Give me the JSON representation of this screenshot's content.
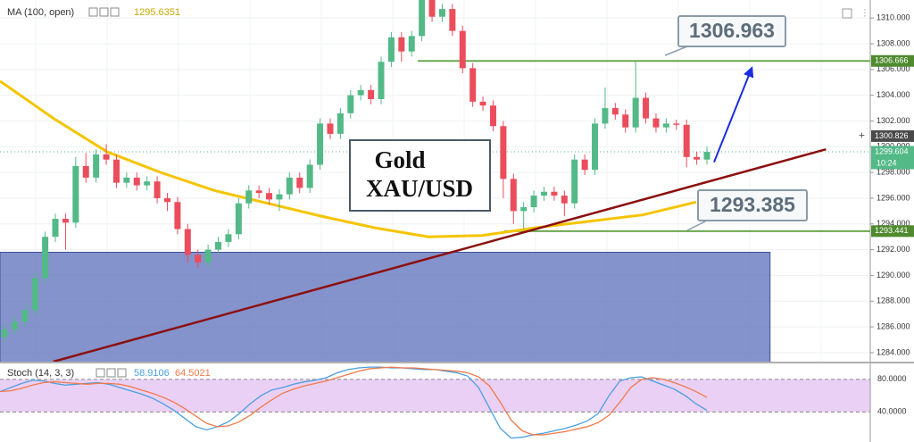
{
  "chart_data": [
    {
      "type": "candlestick",
      "indicator": {
        "name": "MA (100, open)",
        "value_text": "1295.6351",
        "color": "#f5c400",
        "values": [
          1305.1,
          1302.2,
          1299.6,
          1298.0,
          1296.6,
          1295.6,
          1294.6,
          1293.7,
          1293.0,
          1293.1,
          1293.7,
          1294.2,
          1294.7,
          1295.7
        ]
      },
      "up_color": "#53b987",
      "down_color": "#eb4d5c",
      "open": [
        1285.2,
        1285.8,
        1286.4,
        1287.3,
        1289.8,
        1293.0,
        1294.4,
        1294.1,
        1298.5,
        1297.6,
        1299.4,
        1299.0,
        1297.2,
        1297.6,
        1297.0,
        1297.3,
        1296.0,
        1295.7,
        1293.6,
        1291.6,
        1291.0,
        1292.0,
        1292.6,
        1293.2,
        1295.6,
        1296.6,
        1296.4,
        1295.9,
        1296.3,
        1297.6,
        1296.8,
        1298.6,
        1301.8,
        1301.0,
        1302.6,
        1304.0,
        1304.4,
        1303.7,
        1306.6,
        1308.5,
        1307.4,
        1308.6,
        1311.5,
        1310.1,
        1310.7,
        1309.0,
        1306.1,
        1303.5,
        1303.2,
        1301.6,
        1297.5,
        1295.0,
        1295.3,
        1296.2,
        1296.5,
        1296.2,
        1295.6,
        1299.0,
        1298.2,
        1301.8,
        1303.0,
        1302.5,
        1301.5,
        1303.8,
        1302.2,
        1301.5,
        1301.8,
        1301.7,
        1299.2,
        1299.0
      ],
      "high": [
        1286.2,
        1286.8,
        1287.7,
        1290.2,
        1293.4,
        1294.8,
        1294.8,
        1299.2,
        1299.5,
        1299.8,
        1300.2,
        1299.4,
        1298.0,
        1298.0,
        1297.7,
        1297.7,
        1296.4,
        1296.1,
        1294.0,
        1292.0,
        1292.4,
        1293.0,
        1293.6,
        1296.0,
        1297.0,
        1297.0,
        1296.8,
        1296.7,
        1298.0,
        1298.0,
        1299.0,
        1302.2,
        1302.2,
        1303.0,
        1304.4,
        1304.8,
        1304.8,
        1307.0,
        1308.9,
        1308.9,
        1309.0,
        1311.9,
        1311.9,
        1311.1,
        1311.1,
        1309.4,
        1306.5,
        1303.9,
        1303.6,
        1302.0,
        1297.9,
        1295.7,
        1296.6,
        1296.9,
        1296.9,
        1296.6,
        1299.4,
        1299.4,
        1302.2,
        1304.6,
        1303.4,
        1302.9,
        1306.6,
        1304.2,
        1302.6,
        1302.2,
        1302.1,
        1302.1,
        1299.6,
        1300.0
      ],
      "low": [
        1284.8,
        1285.4,
        1286.0,
        1286.9,
        1289.4,
        1292.6,
        1292.0,
        1293.7,
        1297.2,
        1297.2,
        1298.6,
        1296.8,
        1296.8,
        1296.6,
        1296.6,
        1295.6,
        1295.0,
        1293.2,
        1291.0,
        1290.6,
        1290.6,
        1291.6,
        1292.2,
        1292.8,
        1295.2,
        1296.0,
        1295.5,
        1295.0,
        1295.9,
        1296.4,
        1296.4,
        1298.2,
        1300.6,
        1300.6,
        1302.2,
        1303.6,
        1303.3,
        1303.3,
        1306.2,
        1306.6,
        1307.0,
        1308.2,
        1309.7,
        1309.7,
        1308.6,
        1305.7,
        1303.1,
        1302.8,
        1301.2,
        1296.0,
        1294.0,
        1293.6,
        1294.9,
        1295.8,
        1295.8,
        1294.6,
        1295.2,
        1297.8,
        1297.8,
        1301.4,
        1302.1,
        1301.1,
        1301.1,
        1301.8,
        1301.1,
        1301.1,
        1301.3,
        1298.4,
        1298.6,
        1298.6
      ],
      "close": [
        1285.8,
        1286.4,
        1287.3,
        1289.8,
        1293.0,
        1294.4,
        1294.1,
        1298.5,
        1297.6,
        1299.4,
        1299.0,
        1297.2,
        1297.6,
        1297.0,
        1297.3,
        1296.0,
        1295.7,
        1293.6,
        1291.6,
        1291.0,
        1292.0,
        1292.6,
        1293.2,
        1295.6,
        1296.6,
        1296.4,
        1295.9,
        1296.3,
        1297.6,
        1296.8,
        1298.6,
        1301.8,
        1301.0,
        1302.6,
        1304.0,
        1304.4,
        1303.7,
        1306.6,
        1308.5,
        1307.4,
        1308.6,
        1311.5,
        1310.1,
        1310.7,
        1309.0,
        1306.1,
        1303.5,
        1303.2,
        1301.6,
        1297.5,
        1295.0,
        1295.3,
        1296.2,
        1296.5,
        1296.2,
        1295.6,
        1299.0,
        1298.2,
        1301.8,
        1303.0,
        1302.5,
        1301.5,
        1303.8,
        1302.2,
        1301.5,
        1301.8,
        1301.7,
        1299.2,
        1299.0,
        1299.6
      ],
      "ylim": [
        1283.3,
        1311.4
      ],
      "yticks": [
        {
          "value": 1284,
          "label": "1284.000"
        },
        {
          "value": 1286,
          "label": "1286.000"
        },
        {
          "value": 1288,
          "label": "1288.000"
        },
        {
          "value": 1290,
          "label": "1290.000"
        },
        {
          "value": 1292,
          "label": "1292.000"
        },
        {
          "value": 1294,
          "label": "1294.000"
        },
        {
          "value": 1296,
          "label": "1296.000"
        },
        {
          "value": 1298,
          "label": "1298.000"
        },
        {
          "value": 1300,
          "label": "1300.000"
        },
        {
          "value": 1302,
          "label": "1302.000"
        },
        {
          "value": 1304,
          "label": "1304.000"
        },
        {
          "value": 1306,
          "label": "1306.000"
        },
        {
          "value": 1308,
          "label": "1308.000"
        },
        {
          "value": 1310,
          "label": "1310.000"
        }
      ],
      "grid": true,
      "levels": [
        {
          "value": 1306.666,
          "start": 40.6,
          "color": "#6aa84f"
        },
        {
          "value": 1293.441,
          "start": 49.1,
          "color": "#6aa84f"
        }
      ],
      "last_price": {
        "value": 1299.604,
        "color": "#53b987"
      },
      "price_tags": [
        {
          "value": 1306.666,
          "label": "1306.666",
          "color": "#4f8a2f"
        },
        {
          "value": 1300.826,
          "label": "1300.826",
          "color": "#4a4a4a"
        },
        {
          "value": 1299.604,
          "label": "1299.604",
          "color": "#53b987",
          "sub": "10:24"
        },
        {
          "value": 1293.441,
          "label": "1293.441",
          "color": "#4f8a2f"
        }
      ],
      "zone": {
        "top": 1291.8,
        "bottom": 1283.3,
        "end": 75.2,
        "color": "#6678bf"
      },
      "trendline": {
        "start": [
          4.8,
          1283.3
        ],
        "end": [
          80.7,
          1299.8
        ],
        "color": "#8b1010"
      },
      "arrow": {
        "start": [
          69.7,
          1298.8
        ],
        "end": [
          73.4,
          1306.1
        ],
        "color": "#1a2ee0"
      },
      "callouts": [
        {
          "text": "1306.963"
        },
        {
          "text": "1293.385"
        }
      ],
      "title_lines": [
        "Gold",
        "XAU/USD"
      ]
    },
    {
      "type": "line",
      "name": "Stoch (14, 3, 3)",
      "series": [
        {
          "name": "%K",
          "value_text": "58.9106",
          "color": "#4a9fe0",
          "values": [
            65,
            70,
            75,
            79,
            78,
            75,
            73,
            74,
            75,
            76,
            74,
            70,
            66,
            62,
            57,
            50,
            42,
            32,
            22,
            18,
            22,
            28,
            38,
            50,
            60,
            67,
            70,
            74,
            77,
            79,
            82,
            88,
            92,
            94,
            95,
            95,
            94,
            94,
            93,
            92,
            92,
            90,
            88,
            84,
            70,
            45,
            20,
            8,
            9,
            12,
            14,
            17,
            20,
            24,
            29,
            38,
            60,
            78,
            82,
            83,
            78,
            73,
            68,
            60,
            50,
            42
          ]
        },
        {
          "name": "%D",
          "value_text": "64.5021",
          "color": "#f07a4a",
          "values": [
            65,
            66,
            69,
            73,
            76,
            77,
            76,
            75,
            74,
            75,
            75,
            74,
            71,
            67,
            63,
            58,
            52,
            44,
            35,
            26,
            22,
            23,
            28,
            36,
            46,
            55,
            63,
            68,
            72,
            75,
            78,
            82,
            86,
            90,
            93,
            94,
            95,
            94,
            94,
            93,
            92,
            91,
            90,
            88,
            83,
            72,
            52,
            30,
            17,
            12,
            12,
            14,
            16,
            19,
            22,
            27,
            36,
            52,
            70,
            80,
            82,
            80,
            76,
            71,
            65,
            58
          ]
        }
      ],
      "ylim": [
        3.2,
        98.4
      ],
      "yticks": [
        {
          "value": 80,
          "label": "80.0000"
        },
        {
          "value": 40,
          "label": "40.0000"
        }
      ],
      "band": [
        40,
        80
      ],
      "band_color": "#e6c4f2"
    }
  ]
}
